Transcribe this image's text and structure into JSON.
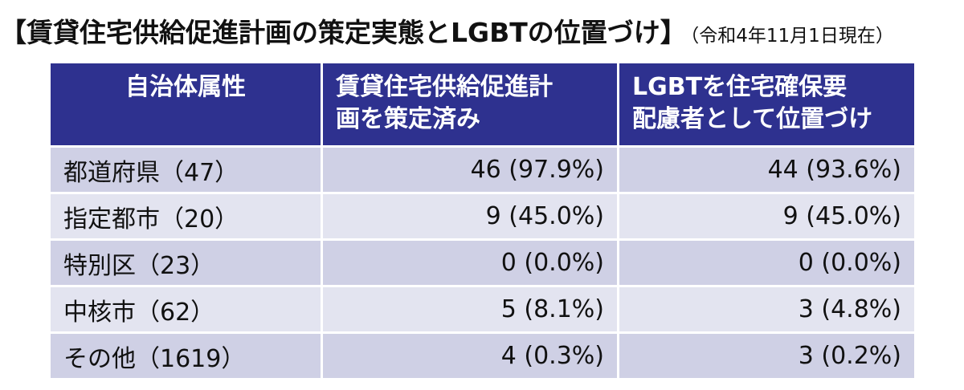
{
  "title": "【賃貸住宅供給促進計画の策定実態とLGBTの位置づけ】",
  "subtitle": "（令和4年11月1日現在）",
  "table": {
    "header": [
      [
        "自治体属性"
      ],
      [
        "賃貸住宅供給促進計",
        "画を策定済み"
      ],
      [
        "LGBTを住宅確保要",
        "配慮者として位置づけ"
      ]
    ],
    "rows": [
      [
        "都道府県（47）",
        "46 (97.9%)",
        "44 (93.6%)"
      ],
      [
        "指定都市（20）",
        "9 (45.0%)",
        "9 (45.0%)"
      ],
      [
        "特別区（23）",
        "0 (0.0%)",
        "0 (0.0%)"
      ],
      [
        "中核市（62）",
        "5 (8.1%)",
        "3 (4.8%)"
      ],
      [
        "その他（1619）",
        "4 (0.3%)",
        "3 (0.2%)"
      ]
    ]
  }
}
